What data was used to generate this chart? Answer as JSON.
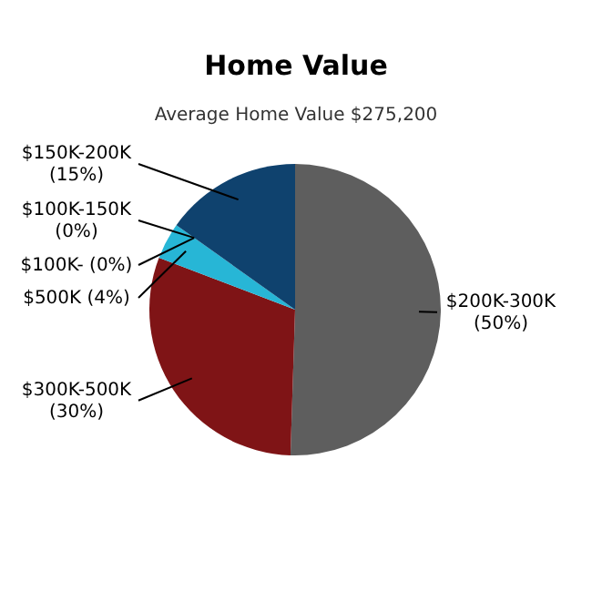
{
  "chart_data": {
    "type": "pie",
    "title": "Home Value",
    "subtitle": "Average Home Value  $275,200",
    "categories": [
      "$200K-300K",
      "$300K-500K",
      "$500K",
      "$100K-150K",
      "$100K-",
      "$150K-200K"
    ],
    "values": [
      50,
      30,
      4,
      0,
      0,
      15
    ],
    "value_labels": [
      "(50%)",
      "(30%)",
      "(4%)",
      "(0%)",
      "(0%)",
      "(15%)"
    ],
    "colors": [
      "#5e5e5e",
      "#7f1416",
      "#27b6d6",
      "#d89a2a",
      "#5a9a3a",
      "#0f426e"
    ]
  }
}
